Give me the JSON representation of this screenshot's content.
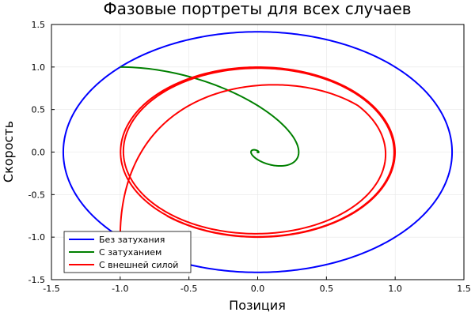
{
  "chart_data": {
    "type": "line",
    "title": "Фазовые портреты для всех случаев",
    "xlabel": "Позиция",
    "ylabel": "Скорость",
    "xlim": [
      -1.5,
      1.5
    ],
    "ylim": [
      -1.5,
      1.5
    ],
    "xticks": [
      "-1.5",
      "-1.0",
      "-0.5",
      "0.0",
      "0.5",
      "1.0",
      "1.5"
    ],
    "yticks": [
      "1.5",
      "1.0",
      "0.5",
      "0.0",
      "-0.5",
      "-1.0",
      "-1.5"
    ],
    "grid": true,
    "legend_position": "bottom-left",
    "series": [
      {
        "name": "Без затухания",
        "color": "#0000ff",
        "kind": "ellipse",
        "center": [
          0,
          0
        ],
        "x_amplitude": 1.414,
        "y_amplitude": 1.414,
        "start_point": [
          -1.0,
          1.0
        ]
      },
      {
        "name": "С затуханием",
        "color": "#008000",
        "kind": "damped_spiral",
        "start_point": [
          -1.0,
          1.0
        ],
        "end_point": [
          0.0,
          0.0
        ],
        "extremes": {
          "x_max": 0.3,
          "y_min": -0.17
        }
      },
      {
        "name": "С внешней силой",
        "color": "#ff0000",
        "kind": "forced_orbit",
        "start_point": [
          -1.0,
          1.0
        ],
        "limit_cycle": {
          "x_amplitude": 1.0,
          "y_amplitude": 1.0
        },
        "extremes": {
          "x_min": -1.0,
          "x_max": 1.13,
          "y_min": -1.0,
          "y_max": 1.0
        }
      }
    ]
  }
}
